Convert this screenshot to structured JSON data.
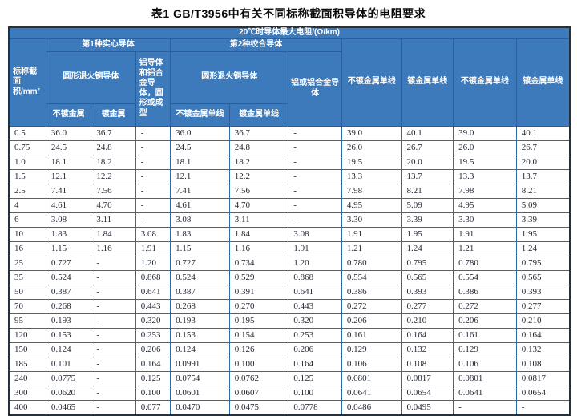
{
  "page": {
    "title": "表1  GB/T3956中有关不同标称截面积导体的电阻要求"
  },
  "colors": {
    "header_bg": "#3d7abc",
    "grid_line": "#2f69a6",
    "outer_border": "#24313f",
    "header_text": "#ffffff",
    "data_text": "#232833"
  },
  "table": {
    "top_header": "20℃时导体最大电阻/(Ω/km)",
    "col1_header": "标称截面积/mm²",
    "group1": {
      "label": "第1种实心导体",
      "copper": {
        "label": "圆形退火铜导体",
        "sub": [
          "不镀金属",
          "镀金属"
        ]
      },
      "aluminum": "铝导体和铝合金导体，圆形或成型"
    },
    "group2": {
      "label": "第2种绞合导体",
      "copper": {
        "label": "圆形退火铜导体",
        "sub": [
          "不镀金属单线",
          "镀金属单线"
        ]
      },
      "aluminum": "铝或铝合金导体"
    },
    "right_columns": [
      "不镀金属单线",
      "镀金属单线",
      "不镀金属单线",
      "镀金属单线"
    ],
    "rows": [
      [
        "0.5",
        "36.0",
        "36.7",
        "-",
        "36.0",
        "36.7",
        "-",
        "39.0",
        "40.1",
        "39.0",
        "40.1"
      ],
      [
        "0.75",
        "24.5",
        "24.8",
        "-",
        "24.5",
        "24.8",
        "-",
        "26.0",
        "26.7",
        "26.0",
        "26.7"
      ],
      [
        "1.0",
        "18.1",
        "18.2",
        "-",
        "18.1",
        "18.2",
        "-",
        "19.5",
        "20.0",
        "19.5",
        "20.0"
      ],
      [
        "1.5",
        "12.1",
        "12.2",
        "-",
        "12.1",
        "12.2",
        "-",
        "13.3",
        "13.7",
        "13.3",
        "13.7"
      ],
      [
        "2.5",
        "7.41",
        "7.56",
        "-",
        "7.41",
        "7.56",
        "-",
        "7.98",
        "8.21",
        "7.98",
        "8.21"
      ],
      [
        "4",
        "4.61",
        "4.70",
        "-",
        "4.61",
        "4.70",
        "-",
        "4.95",
        "5.09",
        "4.95",
        "5.09"
      ],
      [
        "6",
        "3.08",
        "3.11",
        "-",
        "3.08",
        "3.11",
        "-",
        "3.30",
        "3.39",
        "3.30",
        "3.39"
      ],
      [
        "10",
        "1.83",
        "1.84",
        "3.08",
        "1.83",
        "1.84",
        "3.08",
        "1.91",
        "1.95",
        "1.91",
        "1.95"
      ],
      [
        "16",
        "1.15",
        "1.16",
        "1.91",
        "1.15",
        "1.16",
        "1.91",
        "1.21",
        "1.24",
        "1.21",
        "1.24"
      ],
      [
        "25",
        "0.727",
        "-",
        "1.20",
        "0.727",
        "0.734",
        "1.20",
        "0.780",
        "0.795",
        "0.780",
        "0.795"
      ],
      [
        "35",
        "0.524",
        "-",
        "0.868",
        "0.524",
        "0.529",
        "0.868",
        "0.554",
        "0.565",
        "0.554",
        "0.565"
      ],
      [
        "50",
        "0.387",
        "-",
        "0.641",
        "0.387",
        "0.391",
        "0.641",
        "0.386",
        "0.393",
        "0.386",
        "0.393"
      ],
      [
        "70",
        "0.268",
        "-",
        "0.443",
        "0.268",
        "0.270",
        "0.443",
        "0.272",
        "0.277",
        "0.272",
        "0.277"
      ],
      [
        "95",
        "0.193",
        "-",
        "0.320",
        "0.193",
        "0.195",
        "0.320",
        "0.206",
        "0.210",
        "0.206",
        "0.210"
      ],
      [
        "120",
        "0.153",
        "-",
        "0.253",
        "0.153",
        "0.154",
        "0.253",
        "0.161",
        "0.164",
        "0.161",
        "0.164"
      ],
      [
        "150",
        "0.124",
        "-",
        "0.206",
        "0.124",
        "0.126",
        "0.206",
        "0.129",
        "0.132",
        "0.129",
        "0.132"
      ],
      [
        "185",
        "0.101",
        "-",
        "0.164",
        "0.0991",
        "0.100",
        "0.164",
        "0.106",
        "0.108",
        "0.106",
        "0.108"
      ],
      [
        "240",
        "0.0775",
        "-",
        "0.125",
        "0.0754",
        "0.0762",
        "0.125",
        "0.0801",
        "0.0817",
        "0.0801",
        "0.0817"
      ],
      [
        "300",
        "0.0620",
        "-",
        "0.100",
        "0.0601",
        "0.0607",
        "0.100",
        "0.0641",
        "0.0654",
        "0.0641",
        "0.0654"
      ],
      [
        "400",
        "0.0465",
        "-",
        "0.077",
        "0.0470",
        "0.0475",
        "0.0778",
        "0.0486",
        "0.0495",
        "-",
        "-"
      ]
    ]
  }
}
